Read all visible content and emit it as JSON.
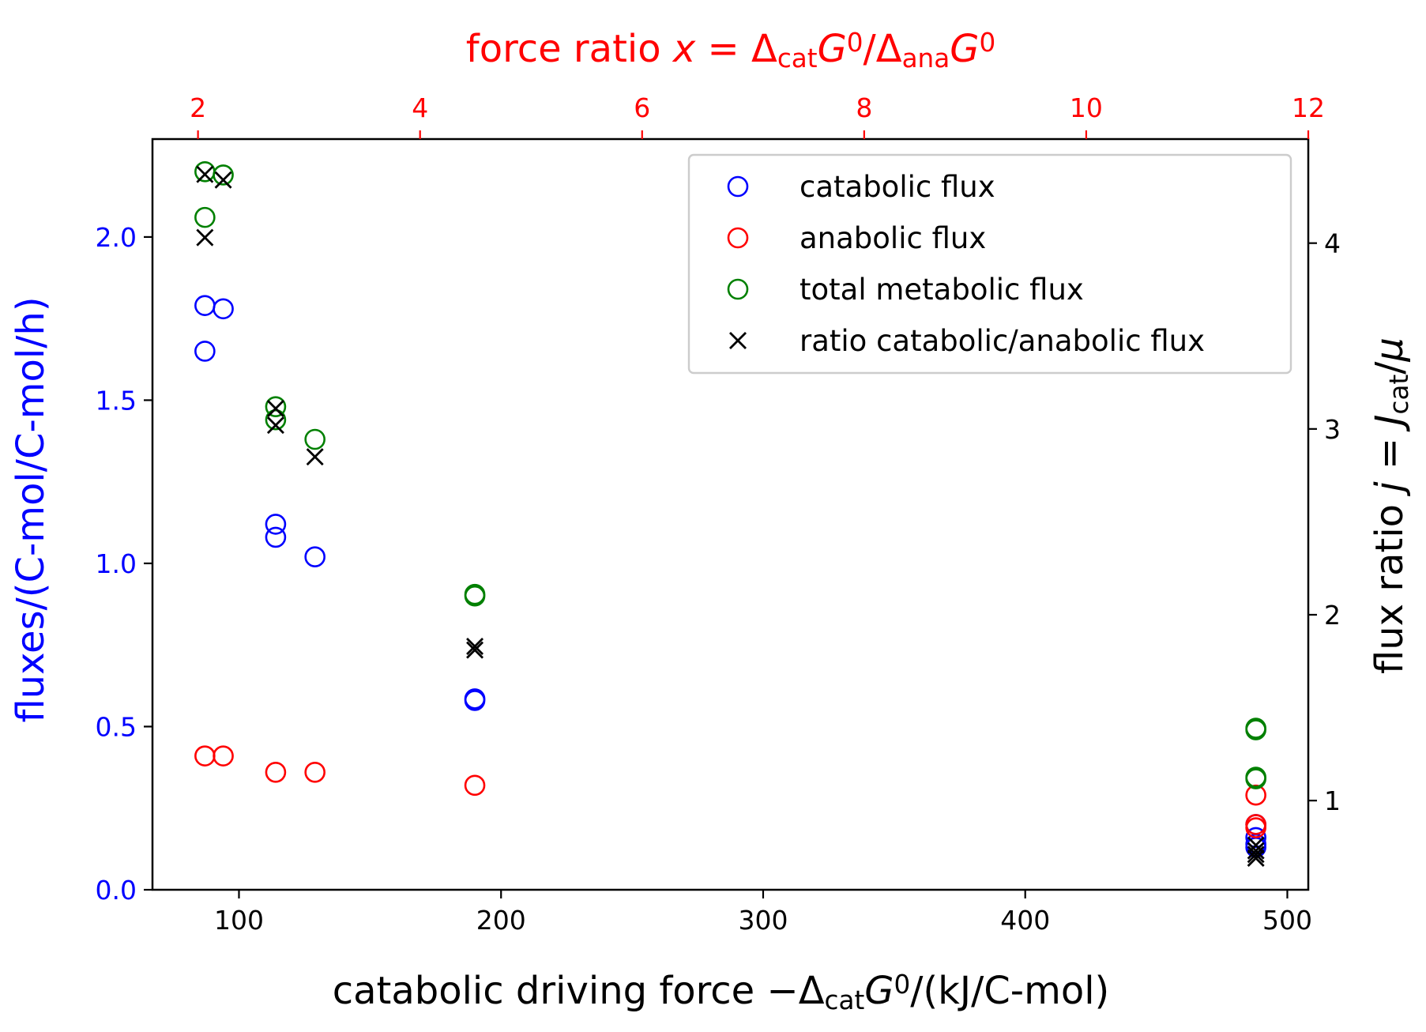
{
  "chart_data": {
    "type": "scatter",
    "axes": {
      "bottom": {
        "label": "catabolic driving force −Δ<sub>cat</sub>G<sup>0</sup>/(kJ/C-mol)",
        "label_parts": [
          {
            "t": "catabolic driving force −Δ"
          },
          {
            "t": "cat",
            "sub": true
          },
          {
            "t": "G",
            "italic": true
          },
          {
            "t": "0",
            "sup": true
          },
          {
            "t": "/(kJ/C-mol)"
          }
        ],
        "range": [
          67,
          508
        ],
        "ticks": [
          "100",
          "200",
          "300",
          "400",
          "500"
        ],
        "tick_values": [
          100,
          200,
          300,
          400,
          500
        ],
        "color": "#000000"
      },
      "left": {
        "label_parts": [
          {
            "t": "fluxes/(C-mol/C-mol/h)"
          }
        ],
        "range": [
          0,
          2.3
        ],
        "ticks": [
          "0.0",
          "0.5",
          "1.0",
          "1.5",
          "2.0"
        ],
        "tick_values": [
          0,
          0.5,
          1.0,
          1.5,
          2.0
        ],
        "color": "#0000ff"
      },
      "top": {
        "label_parts": [
          {
            "t": "force ratio "
          },
          {
            "t": "x",
            "italic": true
          },
          {
            "t": " = Δ"
          },
          {
            "t": "cat",
            "sub": true
          },
          {
            "t": "G",
            "italic": true
          },
          {
            "t": "0",
            "sup": true
          },
          {
            "t": "/Δ"
          },
          {
            "t": "ana",
            "sub": true
          },
          {
            "t": "G",
            "italic": true
          },
          {
            "t": "0",
            "sup": true
          }
        ],
        "range": [
          1.59,
          12.0
        ],
        "ticks": [
          "2",
          "4",
          "6",
          "8",
          "10",
          "12"
        ],
        "tick_values": [
          2,
          4,
          6,
          8,
          10,
          12
        ],
        "color": "#ff0000"
      },
      "right": {
        "label_parts": [
          {
            "t": "flux ratio "
          },
          {
            "t": "j",
            "italic": true
          },
          {
            "t": " = "
          },
          {
            "t": "J",
            "italic": true
          },
          {
            "t": "cat",
            "sub": true
          },
          {
            "t": "/"
          },
          {
            "t": "μ",
            "italic": true
          }
        ],
        "range": [
          0.52,
          4.56
        ],
        "ticks": [
          "1",
          "2",
          "3",
          "4"
        ],
        "tick_values": [
          1,
          2,
          3,
          4
        ],
        "color": "#000000"
      }
    },
    "legend": {
      "placement": "top-right",
      "entries": [
        "catabolic flux",
        "anabolic flux",
        "total metabolic flux",
        "ratio catabolic/anabolic flux"
      ]
    },
    "series": [
      {
        "name": "catabolic flux",
        "marker": "circle",
        "color": "#0000ff",
        "axis": "left",
        "points": [
          [
            87,
            1.79
          ],
          [
            87,
            1.65
          ],
          [
            94,
            1.78
          ],
          [
            114,
            1.12
          ],
          [
            114,
            1.08
          ],
          [
            129,
            1.02
          ],
          [
            190,
            0.585
          ],
          [
            190,
            0.58
          ],
          [
            488,
            0.2
          ],
          [
            488,
            0.16
          ],
          [
            488,
            0.14
          ],
          [
            488,
            0.13
          ]
        ]
      },
      {
        "name": "anabolic flux",
        "marker": "circle",
        "color": "#ff0000",
        "axis": "left",
        "points": [
          [
            87,
            0.41
          ],
          [
            94,
            0.41
          ],
          [
            114,
            0.36
          ],
          [
            129,
            0.36
          ],
          [
            190,
            0.32
          ],
          [
            488,
            0.29
          ],
          [
            488,
            0.2
          ],
          [
            488,
            0.19
          ]
        ]
      },
      {
        "name": "total metabolic flux",
        "marker": "circle",
        "color": "#008000",
        "axis": "left",
        "points": [
          [
            87,
            2.2
          ],
          [
            87,
            2.06
          ],
          [
            94,
            2.19
          ],
          [
            114,
            1.48
          ],
          [
            114,
            1.44
          ],
          [
            129,
            1.38
          ],
          [
            190,
            0.905
          ],
          [
            190,
            0.9
          ],
          [
            488,
            0.495
          ],
          [
            488,
            0.49
          ],
          [
            488,
            0.345
          ],
          [
            488,
            0.34
          ]
        ]
      },
      {
        "name": "ratio catabolic/anabolic flux",
        "marker": "x",
        "color": "#000000",
        "axis": "right",
        "points": [
          [
            87,
            4.37
          ],
          [
            87,
            4.03
          ],
          [
            94,
            4.34
          ],
          [
            114,
            3.11
          ],
          [
            114,
            3.02
          ],
          [
            129,
            2.85
          ],
          [
            190,
            1.83
          ],
          [
            190,
            1.81
          ],
          [
            488,
            0.76
          ],
          [
            488,
            0.73
          ],
          [
            488,
            0.71
          ],
          [
            488,
            0.69
          ]
        ]
      }
    ]
  }
}
